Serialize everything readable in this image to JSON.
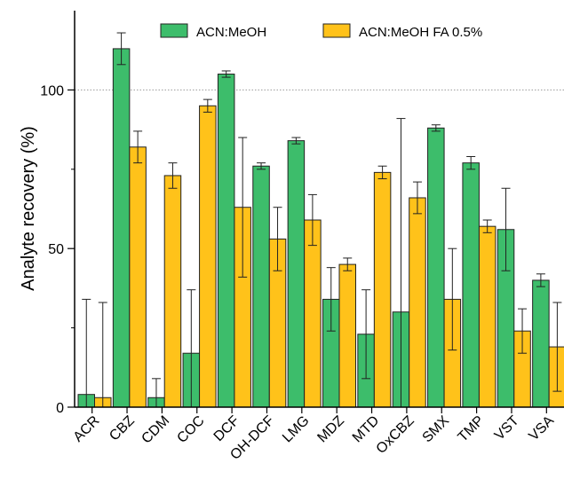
{
  "chart_data": {
    "type": "bar",
    "title": "",
    "xlabel": "",
    "ylabel": "Analyte recovery (%)",
    "ylim": [
      0,
      125
    ],
    "yticks": [
      0,
      50,
      100
    ],
    "reference_line": 100,
    "grid": false,
    "legend_position": "top",
    "categories": [
      "ACR",
      "CBZ",
      "CDM",
      "COC",
      "DCF",
      "OH-DCF",
      "LMG",
      "MDZ",
      "MTD",
      "OxCBZ",
      "SMX",
      "TMP",
      "VST",
      "VSA"
    ],
    "series": [
      {
        "name": "ACN:MeOH",
        "color": "#3dbd6b",
        "values": [
          4,
          113,
          3,
          17,
          105,
          76,
          84,
          34,
          23,
          30,
          88,
          77,
          56,
          40
        ],
        "error": [
          30,
          5,
          6,
          20,
          1,
          1,
          1,
          10,
          14,
          61,
          1,
          2,
          13,
          2
        ]
      },
      {
        "name": "ACN:MeOH FA 0.5%",
        "color": "#ffc21a",
        "values": [
          3,
          82,
          73,
          95,
          63,
          53,
          59,
          45,
          74,
          66,
          34,
          57,
          24,
          19
        ],
        "error": [
          30,
          5,
          4,
          2,
          22,
          10,
          8,
          2,
          2,
          5,
          16,
          2,
          7,
          14
        ]
      }
    ]
  }
}
